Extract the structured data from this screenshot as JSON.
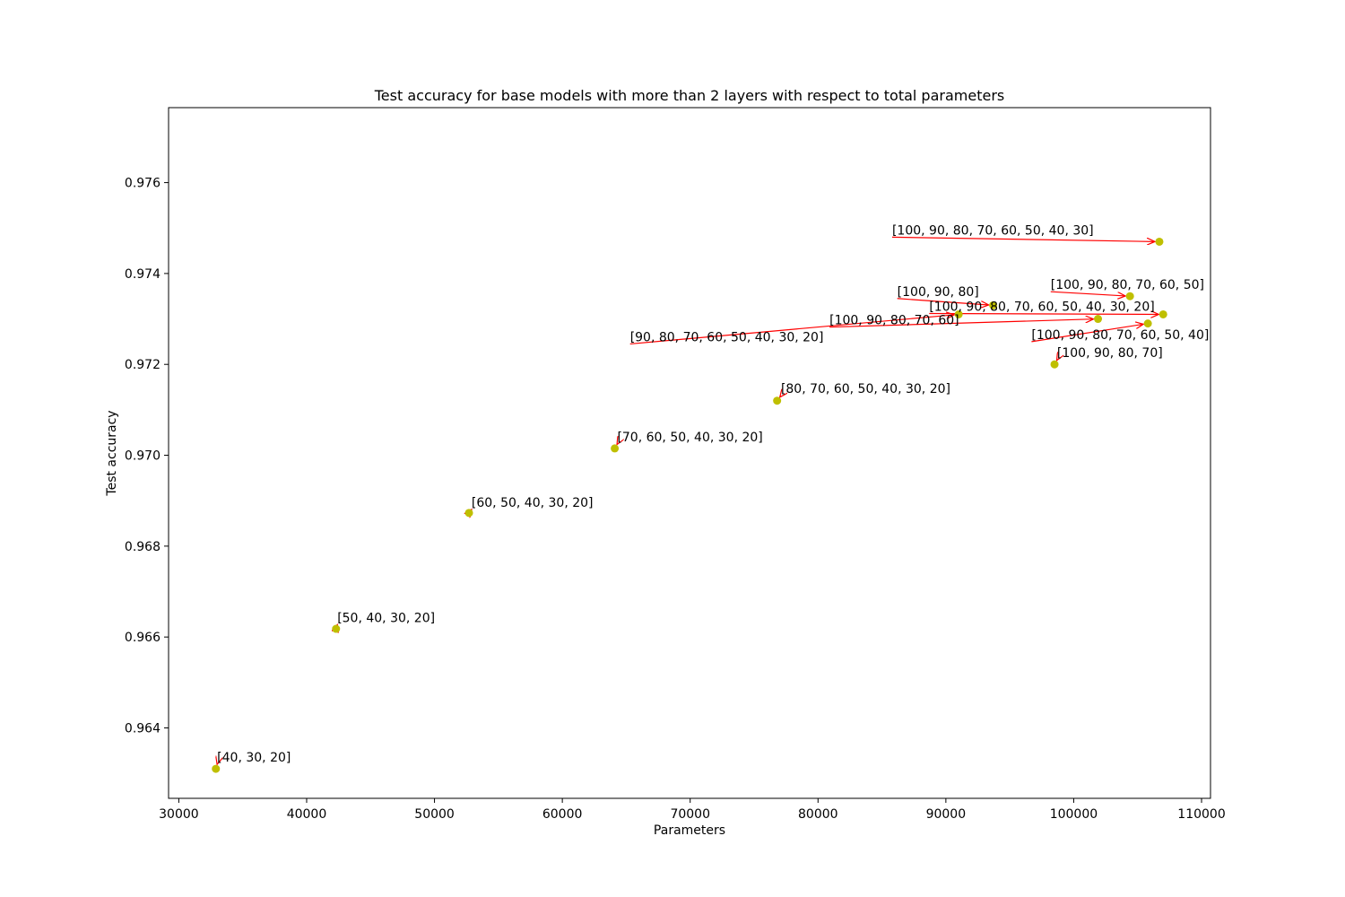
{
  "chart_data": {
    "type": "scatter",
    "title": "Test accuracy for base models with  more than 2 layers with respect to total parameters",
    "xlabel": "Parameters",
    "ylabel": "Test accuracy",
    "xlim": [
      29200,
      110700
    ],
    "ylim": [
      0.96245,
      0.97765
    ],
    "xticks": [
      30000,
      40000,
      50000,
      60000,
      70000,
      80000,
      90000,
      100000,
      110000
    ],
    "yticks": [
      0.964,
      0.966,
      0.968,
      0.97,
      0.972,
      0.974,
      0.976
    ],
    "xtick_labels": [
      "30000",
      "40000",
      "50000",
      "60000",
      "70000",
      "80000",
      "90000",
      "100000",
      "110000"
    ],
    "ytick_labels": [
      "0.964",
      "0.966",
      "0.968",
      "0.970",
      "0.972",
      "0.974",
      "0.976"
    ],
    "marker_color": "#bfbf00",
    "arrow_color": "#ff0000",
    "grid": false,
    "points": [
      {
        "label": "[40, 30, 20]",
        "x": 32900,
        "y": 0.9631,
        "text_x": 33000,
        "text_y": 0.9632
      },
      {
        "label": "[50, 40, 30, 20]",
        "x": 42300,
        "y": 0.96618,
        "text_x": 42400,
        "text_y": 0.96627
      },
      {
        "label": "[60, 50, 40, 30, 20]",
        "x": 52700,
        "y": 0.96873,
        "text_x": 52900,
        "text_y": 0.96881
      },
      {
        "label": "[70, 60, 50, 40, 30, 20]",
        "x": 64100,
        "y": 0.97015,
        "text_x": 64300,
        "text_y": 0.97025
      },
      {
        "label": "[80, 70, 60, 50, 40, 30, 20]",
        "x": 76800,
        "y": 0.9712,
        "text_x": 77100,
        "text_y": 0.97131
      },
      {
        "label": "[90, 80, 70, 60, 50, 40, 30, 20]",
        "x": 91000,
        "y": 0.9731,
        "text_x": 65300,
        "text_y": 0.97245
      },
      {
        "label": "[100, 90, 80]",
        "x": 93700,
        "y": 0.9733,
        "text_x": 86200,
        "text_y": 0.97345
      },
      {
        "label": "[100, 90, 80, 70]",
        "x": 98500,
        "y": 0.972,
        "text_x": 98700,
        "text_y": 0.9721
      },
      {
        "label": "[100, 90, 80, 70, 60]",
        "x": 101900,
        "y": 0.973,
        "text_x": 80900,
        "text_y": 0.97282
      },
      {
        "label": "[100, 90, 80, 70, 60, 50]",
        "x": 104400,
        "y": 0.9735,
        "text_x": 98200,
        "text_y": 0.9736
      },
      {
        "label": "[100, 90, 80, 70, 60, 50, 40]",
        "x": 105800,
        "y": 0.9729,
        "text_x": 96700,
        "text_y": 0.9725
      },
      {
        "label": "[100, 90, 80, 70, 60, 50, 40, 30]",
        "x": 106700,
        "y": 0.9747,
        "text_x": 85800,
        "text_y": 0.9748
      },
      {
        "label": "[100, 90, 80, 70, 60, 50, 40, 30, 20]",
        "x": 107000,
        "y": 0.9731,
        "text_x": 88700,
        "text_y": 0.97312
      }
    ]
  }
}
